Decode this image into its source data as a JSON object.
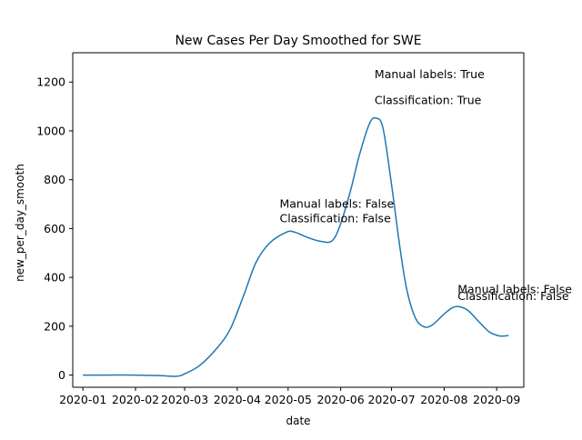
{
  "chart_data": {
    "type": "line",
    "title": "New Cases Per Day Smoothed for SWE",
    "xlabel": "date",
    "ylabel": "new_per_day_smooth",
    "x_ticks": [
      "2020-01",
      "2020-02",
      "2020-03",
      "2020-04",
      "2020-05",
      "2020-06",
      "2020-07",
      "2020-08",
      "2020-09"
    ],
    "y_ticks": [
      0,
      200,
      400,
      600,
      800,
      1000,
      1200
    ],
    "xlim": [
      "2019-12-26",
      "2020-09-17"
    ],
    "ylim": [
      -50,
      1320
    ],
    "grid": false,
    "line_color": "#1f77b4",
    "series": [
      {
        "points": [
          [
            "2020-01-01",
            0
          ],
          [
            "2020-01-15",
            0
          ],
          [
            "2020-02-01",
            0
          ],
          [
            "2020-02-15",
            -2
          ],
          [
            "2020-02-25",
            -5
          ],
          [
            "2020-03-01",
            5
          ],
          [
            "2020-03-10",
            40
          ],
          [
            "2020-03-20",
            110
          ],
          [
            "2020-03-28",
            190
          ],
          [
            "2020-04-05",
            330
          ],
          [
            "2020-04-12",
            460
          ],
          [
            "2020-04-20",
            540
          ],
          [
            "2020-04-30",
            585
          ],
          [
            "2020-05-05",
            585
          ],
          [
            "2020-05-12",
            565
          ],
          [
            "2020-05-20",
            548
          ],
          [
            "2020-05-27",
            550
          ],
          [
            "2020-06-01",
            620
          ],
          [
            "2020-06-07",
            760
          ],
          [
            "2020-06-12",
            900
          ],
          [
            "2020-06-18",
            1030
          ],
          [
            "2020-06-22",
            1052
          ],
          [
            "2020-06-26",
            1010
          ],
          [
            "2020-07-01",
            780
          ],
          [
            "2020-07-06",
            520
          ],
          [
            "2020-07-10",
            350
          ],
          [
            "2020-07-15",
            235
          ],
          [
            "2020-07-20",
            198
          ],
          [
            "2020-07-25",
            205
          ],
          [
            "2020-08-01",
            250
          ],
          [
            "2020-08-06",
            276
          ],
          [
            "2020-08-10",
            280
          ],
          [
            "2020-08-15",
            265
          ],
          [
            "2020-08-22",
            215
          ],
          [
            "2020-08-28",
            175
          ],
          [
            "2020-09-03",
            160
          ],
          [
            "2020-09-08",
            162
          ]
        ]
      }
    ],
    "annotations": [
      {
        "x": "2020-04-26",
        "y": 685,
        "lines": [
          "Manual labels: False"
        ]
      },
      {
        "x": "2020-04-26",
        "y": 625,
        "lines": [
          "Classification: False"
        ]
      },
      {
        "x": "2020-06-21",
        "y": 1215,
        "lines": [
          "Manual labels: True"
        ]
      },
      {
        "x": "2020-06-21",
        "y": 1110,
        "lines": [
          "Classification: True"
        ]
      },
      {
        "x": "2020-08-09",
        "y": 335,
        "lines": [
          "Manual labels: False"
        ]
      },
      {
        "x": "2020-08-09",
        "y": 308,
        "lines": [
          "Classification: False"
        ]
      }
    ]
  }
}
